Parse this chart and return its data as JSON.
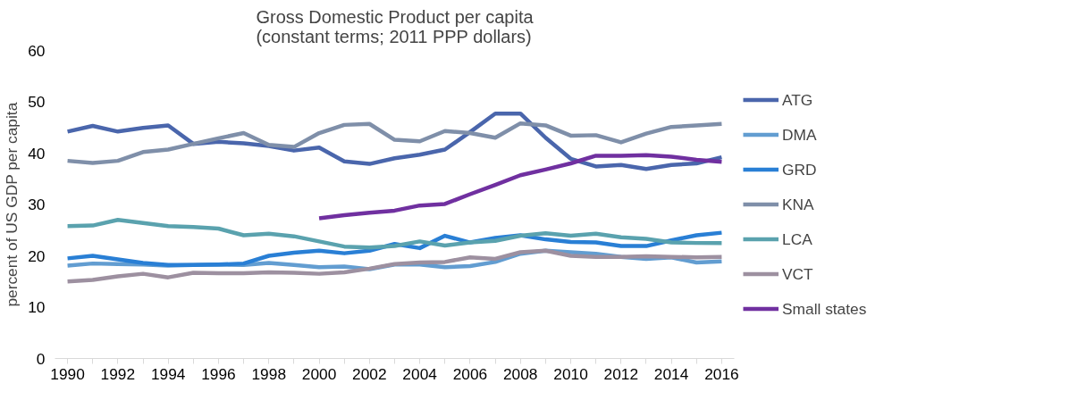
{
  "chart_data": {
    "type": "line",
    "title": "Gross Domestic Product per capita\n(constant terms; 2011 PPP dollars)",
    "ylabel": "percent of US GDP per capita",
    "x": [
      1990,
      1991,
      1992,
      1993,
      1994,
      1995,
      1996,
      1997,
      1998,
      1999,
      2000,
      2001,
      2002,
      2003,
      2004,
      2005,
      2006,
      2007,
      2008,
      2009,
      2010,
      2011,
      2012,
      2013,
      2014,
      2015,
      2016
    ],
    "xlim": [
      1989.5,
      2016.5
    ],
    "xticks": [
      1990,
      {
        "value": 1991,
        "label": null
      },
      1992,
      {
        "value": 1993,
        "label": null
      },
      1994,
      {
        "value": 1995,
        "label": null
      },
      1996,
      {
        "value": 1997,
        "label": null
      },
      1998,
      {
        "value": 1999,
        "label": null
      },
      2000,
      {
        "value": 2001,
        "label": null
      },
      2002,
      {
        "value": 2003,
        "label": null
      },
      2004,
      {
        "value": 2005,
        "label": null
      },
      2006,
      {
        "value": 2007,
        "label": null
      },
      2008,
      {
        "value": 2009,
        "label": null
      },
      2010,
      {
        "value": 2011,
        "label": null
      },
      2012,
      {
        "value": 2013,
        "label": null
      },
      2014,
      {
        "value": 2015,
        "label": null
      },
      2016
    ],
    "ylim": [
      0,
      60
    ],
    "yticks": [
      0,
      10,
      20,
      30,
      40,
      50,
      60
    ],
    "grid": false,
    "legend": "right",
    "series": [
      {
        "name": "ATG",
        "color": "#4a66ac",
        "values": [
          44.2,
          45.3,
          44.2,
          44.9,
          45.4,
          41.8,
          42.2,
          41.9,
          41.4,
          40.5,
          41.1,
          38.4,
          37.9,
          39.0,
          39.7,
          40.7,
          44.1,
          47.7,
          47.7,
          43.0,
          38.9,
          37.4,
          37.7,
          36.9,
          37.7,
          38.0,
          39.2
        ]
      },
      {
        "name": "DMA",
        "color": "#629dd1",
        "values": [
          18.1,
          18.5,
          18.4,
          18.3,
          18.1,
          18.2,
          18.3,
          18.2,
          18.6,
          18.2,
          17.8,
          17.9,
          17.4,
          18.3,
          18.3,
          17.8,
          18.0,
          18.8,
          20.4,
          21.0,
          20.7,
          20.4,
          19.8,
          19.4,
          19.7,
          18.7,
          18.9
        ]
      },
      {
        "name": "GRD",
        "color": "#297fd5",
        "values": [
          19.5,
          20.0,
          19.3,
          18.6,
          18.2,
          18.2,
          18.3,
          18.5,
          20.0,
          20.6,
          21.0,
          20.5,
          21.0,
          22.3,
          21.5,
          23.9,
          22.6,
          23.5,
          24.0,
          23.2,
          22.7,
          22.6,
          21.9,
          21.9,
          23.0,
          24.0,
          24.5
        ]
      },
      {
        "name": "KNA",
        "color": "#7f8fa9",
        "values": [
          38.5,
          38.1,
          38.5,
          40.2,
          40.7,
          41.8,
          42.9,
          43.9,
          41.6,
          41.2,
          43.9,
          45.5,
          45.7,
          42.6,
          42.3,
          44.3,
          43.9,
          43.0,
          45.8,
          45.4,
          43.4,
          43.5,
          42.1,
          43.8,
          45.1,
          45.4,
          45.7
        ]
      },
      {
        "name": "LCA",
        "color": "#5aa2ae",
        "values": [
          25.8,
          25.9,
          27.0,
          26.4,
          25.8,
          25.6,
          25.3,
          24.0,
          24.3,
          23.8,
          22.8,
          21.8,
          21.6,
          21.9,
          22.8,
          22.0,
          22.6,
          22.9,
          23.9,
          24.4,
          23.9,
          24.3,
          23.6,
          23.3,
          22.6,
          22.5,
          22.5
        ]
      },
      {
        "name": "VCT",
        "color": "#9d90a0",
        "values": [
          15.0,
          15.3,
          16.0,
          16.5,
          15.8,
          16.7,
          16.6,
          16.6,
          16.8,
          16.7,
          16.5,
          16.8,
          17.5,
          18.4,
          18.7,
          18.8,
          19.7,
          19.4,
          20.7,
          21.0,
          20.0,
          19.8,
          19.8,
          19.9,
          19.8,
          19.7,
          19.8
        ]
      },
      {
        "name": "Small states",
        "color": "#7030a0",
        "values": [
          null,
          null,
          null,
          null,
          null,
          null,
          null,
          null,
          null,
          null,
          27.3,
          27.9,
          28.4,
          28.8,
          29.8,
          30.1,
          32.0,
          33.8,
          35.7,
          36.8,
          38.0,
          39.5,
          39.5,
          39.6,
          39.3,
          38.7,
          38.3
        ]
      }
    ]
  }
}
